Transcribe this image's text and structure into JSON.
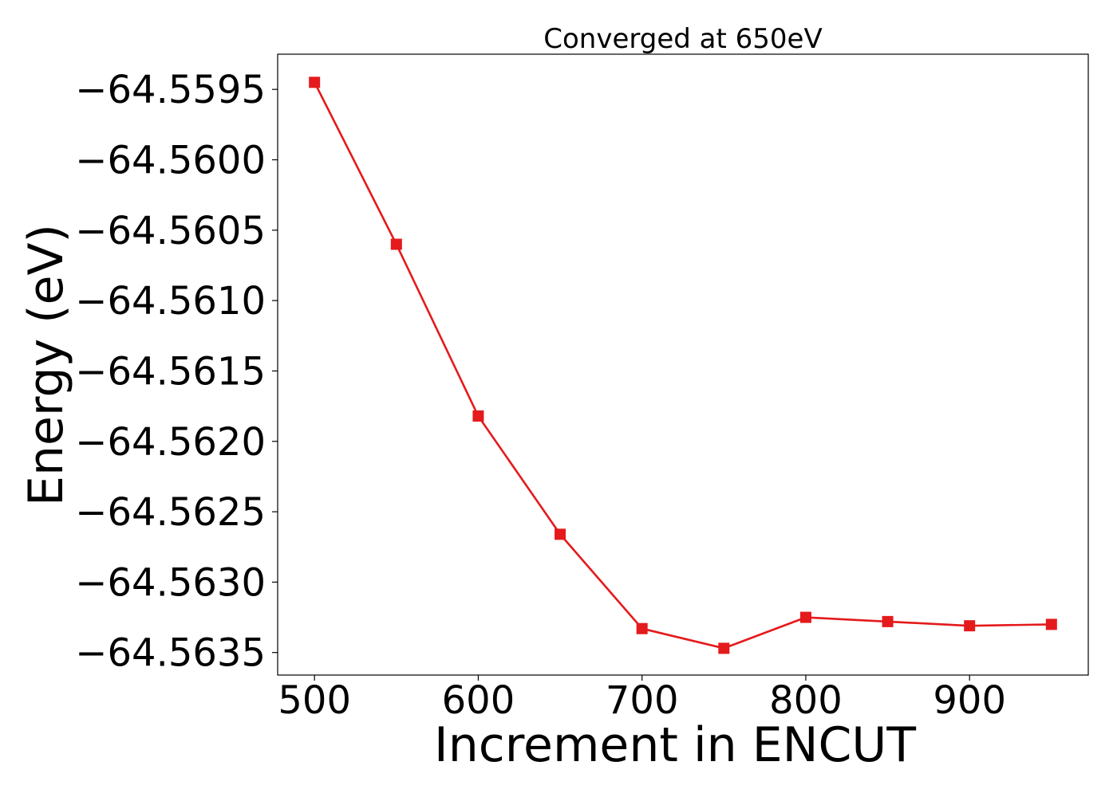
{
  "chart_data": {
    "type": "line",
    "title": "Converged at 650eV",
    "xlabel": "Increment in ENCUT",
    "ylabel": "Energy (eV)",
    "x": [
      500,
      550,
      600,
      650,
      700,
      750,
      800,
      850,
      900,
      950
    ],
    "series": [
      {
        "values": [
          -64.55945,
          -64.5606,
          -64.56182,
          -64.56266,
          -64.56333,
          -64.56347,
          -64.56325,
          -64.56328,
          -64.56331,
          -64.5633
        ]
      }
    ],
    "xlim": [
      477.5,
      972.5
    ],
    "ylim": [
      -64.56366,
      -64.55925
    ],
    "xticks": [
      500,
      600,
      700,
      800,
      900
    ],
    "yticks": [
      -64.5595,
      -64.56,
      -64.5605,
      -64.561,
      -64.5615,
      -64.562,
      -64.5625,
      -64.563,
      -64.5635
    ],
    "xtick_labels": [
      "500",
      "600",
      "700",
      "800",
      "900"
    ],
    "ytick_labels": [
      "−64.5595",
      "−64.5600",
      "−64.5605",
      "−64.5610",
      "−64.5615",
      "−64.5620",
      "−64.5625",
      "−64.5630",
      "−64.5635"
    ],
    "grid": false,
    "legend": "none",
    "line_color": "#e41a1c",
    "marker": "square"
  }
}
